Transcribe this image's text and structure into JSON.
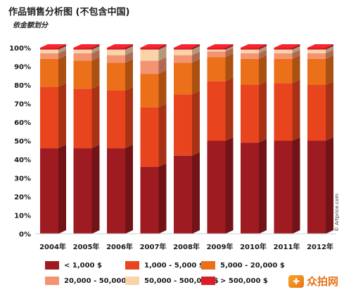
{
  "header": {
    "title": "作品销售分析图 (不包含中国)",
    "subtitle": "依金额划分"
  },
  "credit": "© Artprice.com",
  "watermark": {
    "icon": "logo-icon",
    "text": "众拍网"
  },
  "chart_data": {
    "type": "bar",
    "stacked": true,
    "style": "3d",
    "categories": [
      "2004年",
      "2005年",
      "2006年",
      "2007年",
      "2008年",
      "2009年",
      "2010年",
      "2011年",
      "2012年"
    ],
    "y_ticks": [
      "0%",
      "10%",
      "20%",
      "30%",
      "40%",
      "50%",
      "60%",
      "70%",
      "80%",
      "90%",
      "100%"
    ],
    "ylim": [
      0,
      100
    ],
    "grid": false,
    "legend_position": "bottom",
    "series": [
      {
        "name": "< 1,000 $",
        "color": "#9e1b22",
        "values": [
          46,
          46,
          46,
          36,
          42,
          50,
          49,
          50,
          50
        ]
      },
      {
        "name": "1,000 - 5,000 $",
        "color": "#e8451e",
        "values": [
          33,
          32,
          31,
          32,
          33,
          32,
          31,
          31,
          30
        ]
      },
      {
        "name": "5,000 - 20,000 $",
        "color": "#ec6f1a",
        "values": [
          15,
          15,
          15,
          18,
          17,
          13,
          14,
          13,
          14
        ]
      },
      {
        "name": "20,000 - 50,000 $",
        "color": "#f29372",
        "values": [
          3,
          4,
          4,
          7,
          4,
          3,
          3,
          3,
          3
        ]
      },
      {
        "name": "50,000 - 500,000 $",
        "color": "#fad3a8",
        "values": [
          2,
          2,
          3,
          6,
          3,
          1,
          2,
          2,
          2
        ]
      },
      {
        "name": "> 500,000 $",
        "color": "#d91e2a",
        "values": [
          1,
          1,
          1,
          1,
          1,
          1,
          1,
          1,
          1
        ]
      }
    ]
  }
}
